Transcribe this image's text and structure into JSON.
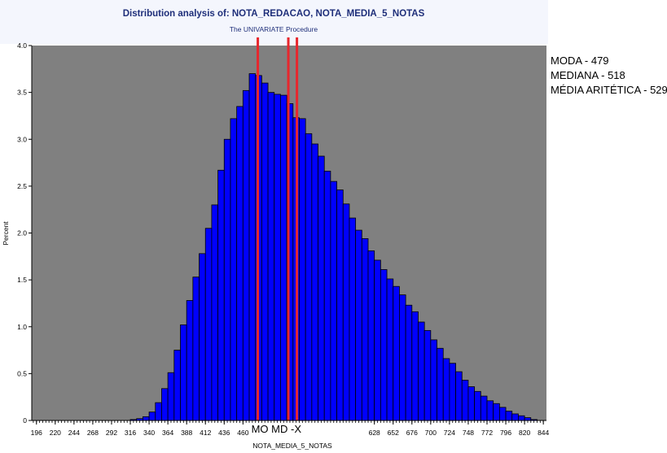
{
  "chart_data": {
    "type": "bar",
    "title": "Distribution analysis of: NOTA_REDACAO, NOTA_MEDIA_5_NOTAS",
    "subtitle": "The UNIVARIATE Procedure",
    "xlabel": "NOTA_MEDIA_5_NOTAS",
    "ylabel": "Percent",
    "xlim": [
      190,
      848
    ],
    "ylim": [
      0,
      4.0
    ],
    "y_ticks": [
      "0",
      "0.5",
      "1.0",
      "1.5",
      "2.0",
      "2.5",
      "3.0",
      "3.5",
      "4.0"
    ],
    "x_ticks": [
      "196",
      "220",
      "244",
      "268",
      "292",
      "316",
      "340",
      "364",
      "388",
      "412",
      "436",
      "460",
      "628",
      "652",
      "676",
      "700",
      "724",
      "748",
      "772",
      "796",
      "820",
      "844"
    ],
    "x_tick_values": [
      196,
      220,
      244,
      268,
      292,
      316,
      340,
      364,
      388,
      412,
      436,
      460,
      628,
      652,
      676,
      700,
      724,
      748,
      772,
      796,
      820,
      844
    ],
    "grid": false,
    "bin_width": 8,
    "bins_start": [
      316,
      324,
      332,
      340,
      348,
      356,
      364,
      372,
      380,
      388,
      396,
      404,
      412,
      420,
      428,
      436,
      444,
      452,
      460,
      468,
      476,
      484,
      492,
      500,
      508,
      516,
      524,
      532,
      540,
      548,
      556,
      564,
      572,
      580,
      588,
      596,
      604,
      612,
      620,
      628,
      636,
      644,
      652,
      660,
      668,
      676,
      684,
      692,
      700,
      708,
      716,
      724,
      732,
      740,
      748,
      756,
      764,
      772,
      780,
      788,
      796,
      804,
      812,
      820,
      828
    ],
    "values": [
      0.01,
      0.02,
      0.04,
      0.09,
      0.19,
      0.34,
      0.51,
      0.75,
      1.02,
      1.28,
      1.53,
      1.78,
      2.05,
      2.3,
      2.67,
      3.0,
      3.22,
      3.35,
      3.52,
      3.7,
      3.68,
      3.6,
      3.5,
      3.48,
      3.47,
      3.38,
      3.23,
      3.22,
      3.06,
      2.95,
      2.82,
      2.66,
      2.55,
      2.46,
      2.31,
      2.16,
      2.03,
      1.94,
      1.81,
      1.71,
      1.61,
      1.51,
      1.43,
      1.34,
      1.23,
      1.16,
      1.05,
      0.96,
      0.86,
      0.77,
      0.66,
      0.61,
      0.52,
      0.43,
      0.36,
      0.31,
      0.26,
      0.21,
      0.18,
      0.14,
      0.1,
      0.07,
      0.05,
      0.03,
      0.01
    ],
    "colors": {
      "bar": "#0000ff",
      "bar_edge": "#000000",
      "plot_background": "#808080",
      "marker_line": "#e8262d",
      "title": "#1f2f7a",
      "title_band": "#f4f6fd"
    },
    "markers": [
      {
        "label": "MO",
        "value": 479
      },
      {
        "label": "MD",
        "value": 518
      },
      {
        "label": "-X",
        "value": 529
      }
    ],
    "annotations": [
      "MODA - 479",
      "MEDIANA - 518",
      "MÉDIA ARITÉTICA - 529"
    ]
  }
}
